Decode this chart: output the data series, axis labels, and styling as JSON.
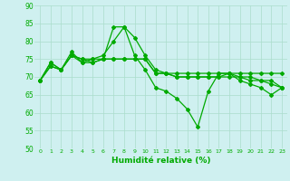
{
  "xlabel": "Humidité relative (%)",
  "background_color": "#cff0f0",
  "grid_color": "#aaddcc",
  "line_color": "#00aa00",
  "ylim": [
    50,
    90
  ],
  "yticks": [
    50,
    55,
    60,
    65,
    70,
    75,
    80,
    85,
    90
  ],
  "xlim": [
    -0.5,
    23.5
  ],
  "xticks": [
    0,
    1,
    2,
    3,
    4,
    5,
    6,
    7,
    8,
    9,
    10,
    11,
    12,
    13,
    14,
    15,
    16,
    17,
    18,
    19,
    20,
    21,
    22,
    23
  ],
  "series": [
    [
      69,
      74,
      72,
      76,
      75,
      75,
      75,
      84,
      84,
      81,
      76,
      72,
      71,
      70,
      70,
      70,
      70,
      70,
      71,
      70,
      70,
      69,
      68,
      67
    ],
    [
      69,
      74,
      72,
      77,
      74,
      75,
      76,
      80,
      84,
      76,
      72,
      67,
      66,
      64,
      61,
      56,
      66,
      71,
      71,
      69,
      68,
      67,
      65,
      67
    ],
    [
      69,
      73,
      72,
      76,
      75,
      74,
      75,
      75,
      75,
      75,
      75,
      71,
      71,
      71,
      71,
      71,
      71,
      71,
      71,
      71,
      71,
      71,
      71,
      71
    ],
    [
      69,
      73,
      72,
      76,
      74,
      74,
      75,
      75,
      75,
      75,
      75,
      71,
      71,
      70,
      70,
      70,
      70,
      70,
      70,
      70,
      69,
      69,
      69,
      67
    ]
  ],
  "marker": "D",
  "markersize": 2,
  "linewidth": 0.9
}
